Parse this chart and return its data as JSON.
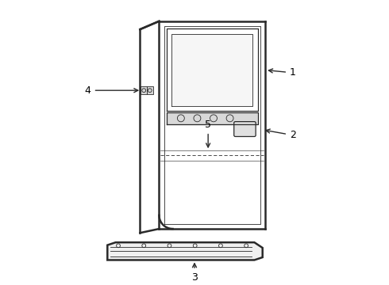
{
  "bg_color": "#ffffff",
  "line_color": "#2a2a2a",
  "label_color": "#000000",
  "lw_outer": 1.8,
  "lw_inner": 0.9,
  "lw_thin": 0.6
}
